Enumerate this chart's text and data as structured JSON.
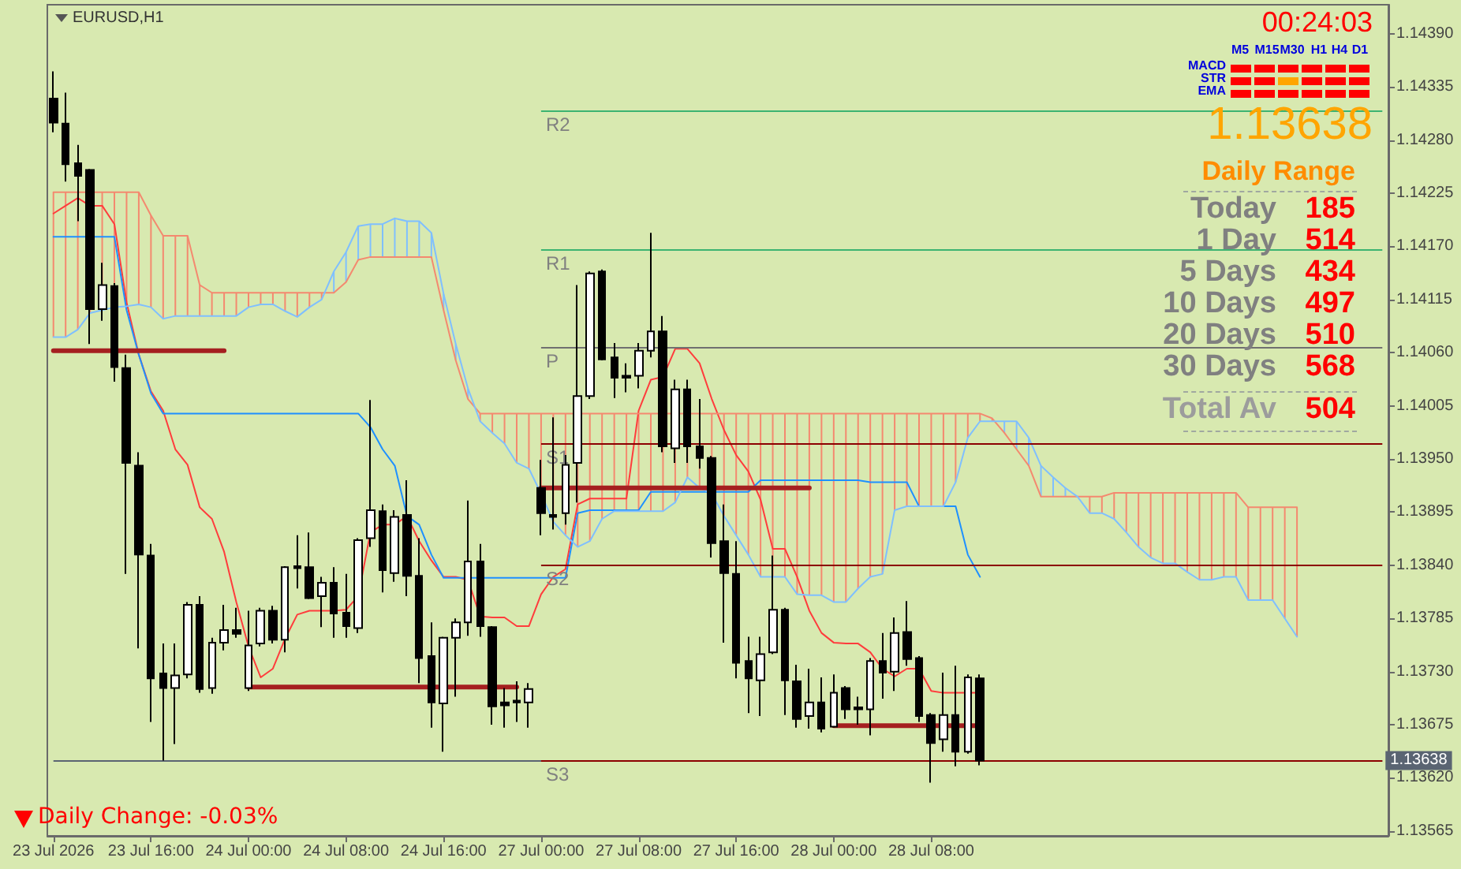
{
  "chart_data": {
    "type": "candlestick",
    "title": "EURUSD,H1",
    "color": "#000000",
    "categories": [
      "23 Jul 2026",
      null,
      null,
      null,
      null,
      null,
      null,
      null,
      "23 Jul 16:00",
      null,
      null,
      null,
      null,
      null,
      null,
      null,
      "24 Jul 00:00",
      null,
      null,
      null,
      null,
      null,
      null,
      null,
      "24 Jul 08:00",
      null,
      null,
      null,
      null,
      null,
      null,
      null,
      "24 Jul 16:00",
      null,
      null,
      null,
      null,
      null,
      null,
      null,
      "27 Jul 00:00",
      null,
      null,
      null,
      null,
      null,
      null,
      null,
      "27 Jul 08:00",
      null,
      null,
      null,
      null,
      null,
      null,
      null,
      "27 Jul 16:00",
      null,
      null,
      null,
      null,
      null,
      null,
      null,
      "28 Jul 00:00",
      null,
      null,
      null,
      null,
      null,
      null,
      null,
      "28 Jul 08:00",
      null,
      null,
      null,
      null,
      null,
      null,
      null,
      null,
      null,
      null,
      null,
      null,
      null,
      null,
      null,
      null,
      null,
      null,
      null,
      null,
      null,
      null,
      null,
      null,
      null,
      null,
      null,
      null,
      null,
      null,
      null,
      null,
      null,
      null,
      null,
      null,
      null
    ],
    "ohlc": [
      [
        1.14323,
        1.14351,
        1.14288,
        1.14298
      ],
      [
        1.14297,
        1.14329,
        1.14237,
        1.14255
      ],
      [
        1.14256,
        1.14275,
        1.14196,
        1.14243
      ],
      [
        1.14249,
        1.1425,
        1.14069,
        1.14105
      ],
      [
        1.14105,
        1.14153,
        1.14093,
        1.1413
      ],
      [
        1.14129,
        1.14132,
        1.1403,
        1.14045
      ],
      [
        1.14044,
        1.14058,
        1.13831,
        1.13946
      ],
      [
        1.13943,
        1.13957,
        1.13754,
        1.13851
      ],
      [
        1.1385,
        1.13862,
        1.13678,
        1.13723
      ],
      [
        1.13728,
        1.13759,
        1.13638,
        1.13713
      ],
      [
        1.13713,
        1.13759,
        1.13655,
        1.13726
      ],
      [
        1.13727,
        1.13802,
        1.13723,
        1.13799
      ],
      [
        1.13799,
        1.13808,
        1.13708,
        1.13712
      ],
      [
        1.13713,
        1.13765,
        1.13707,
        1.1376
      ],
      [
        1.1376,
        1.13799,
        1.13752,
        1.13773
      ],
      [
        1.13773,
        1.13796,
        1.13765,
        1.13769
      ],
      [
        1.13713,
        1.13793,
        1.1371,
        1.13757
      ],
      [
        1.13759,
        1.13796,
        1.13756,
        1.13793
      ],
      [
        1.13793,
        1.13798,
        1.13759,
        1.13763
      ],
      [
        1.13763,
        1.13839,
        1.1375,
        1.13838
      ],
      [
        1.13839,
        1.13871,
        1.13816,
        1.13837
      ],
      [
        1.13838,
        1.13874,
        1.13805,
        1.13806
      ],
      [
        1.13808,
        1.13828,
        1.13776,
        1.13822
      ],
      [
        1.13822,
        1.13838,
        1.13765,
        1.1379
      ],
      [
        1.13791,
        1.13831,
        1.13765,
        1.13777
      ],
      [
        1.13775,
        1.13868,
        1.1377,
        1.13866
      ],
      [
        1.13868,
        1.14011,
        1.13859,
        1.13897
      ],
      [
        1.13896,
        1.13903,
        1.13812,
        1.13835
      ],
      [
        1.13832,
        1.13897,
        1.13823,
        1.1389
      ],
      [
        1.13892,
        1.13928,
        1.13808,
        1.13829
      ],
      [
        1.13829,
        1.13868,
        1.13718,
        1.13744
      ],
      [
        1.13746,
        1.13781,
        1.13672,
        1.13698
      ],
      [
        1.13697,
        1.13766,
        1.13647,
        1.13765
      ],
      [
        1.13765,
        1.13785,
        1.13704,
        1.13781
      ],
      [
        1.13781,
        1.13907,
        1.13767,
        1.13844
      ],
      [
        1.13844,
        1.13862,
        1.13766,
        1.13777
      ],
      [
        1.13776,
        1.13777,
        1.13675,
        1.13694
      ],
      [
        1.13698,
        1.13713,
        1.13672,
        1.13695
      ],
      [
        1.137,
        1.1372,
        1.13678,
        1.13698
      ],
      [
        1.13698,
        1.13718,
        1.13672,
        1.13712
      ],
      [
        1.1392,
        1.13949,
        1.13871,
        1.13894
      ],
      [
        1.13892,
        1.13993,
        1.13877,
        1.1389
      ],
      [
        1.13894,
        1.13954,
        1.13882,
        1.13944
      ],
      [
        1.13946,
        1.1413,
        1.13905,
        1.14015
      ],
      [
        1.14015,
        1.14144,
        1.14012,
        1.14142
      ],
      [
        1.14144,
        1.14146,
        1.14052,
        1.14053
      ],
      [
        1.14055,
        1.1407,
        1.14013,
        1.14034
      ],
      [
        1.14036,
        1.14049,
        1.14019,
        1.14034
      ],
      [
        1.14036,
        1.1407,
        1.14023,
        1.14062
      ],
      [
        1.14062,
        1.14184,
        1.14055,
        1.14082
      ],
      [
        1.14082,
        1.14098,
        1.13957,
        1.13963
      ],
      [
        1.13961,
        1.14032,
        1.13946,
        1.14022
      ],
      [
        1.14022,
        1.14032,
        1.13946,
        1.13963
      ],
      [
        1.13963,
        1.14012,
        1.1394,
        1.13951
      ],
      [
        1.13951,
        1.13953,
        1.13848,
        1.13863
      ],
      [
        1.13865,
        1.13903,
        1.1376,
        1.13832
      ],
      [
        1.13831,
        1.13865,
        1.13723,
        1.13739
      ],
      [
        1.13741,
        1.13766,
        1.13687,
        1.13723
      ],
      [
        1.13721,
        1.13766,
        1.13684,
        1.13748
      ],
      [
        1.1375,
        1.1385,
        1.13748,
        1.13794
      ],
      [
        1.13794,
        1.13796,
        1.13685,
        1.13721
      ],
      [
        1.1372,
        1.13737,
        1.13672,
        1.13681
      ],
      [
        1.13684,
        1.13733,
        1.13671,
        1.13698
      ],
      [
        1.13698,
        1.13724,
        1.13667,
        1.13671
      ],
      [
        1.13673,
        1.13727,
        1.13672,
        1.13708
      ],
      [
        1.13713,
        1.13715,
        1.13681,
        1.13691
      ],
      [
        1.13693,
        1.13704,
        1.13675,
        1.13691
      ],
      [
        1.13691,
        1.13744,
        1.13664,
        1.13741
      ],
      [
        1.13741,
        1.1377,
        1.13702,
        1.13729
      ],
      [
        1.1373,
        1.13786,
        1.1371,
        1.1377
      ],
      [
        1.13771,
        1.13803,
        1.13736,
        1.13743
      ],
      [
        1.13744,
        1.13746,
        1.13678,
        1.13684
      ],
      [
        1.13685,
        1.13687,
        1.13615,
        1.13656
      ],
      [
        1.1366,
        1.13729,
        1.13647,
        1.13685
      ],
      [
        1.13685,
        1.13736,
        1.13632,
        1.13647
      ],
      [
        1.13647,
        1.13727,
        1.13645,
        1.13724
      ],
      [
        1.13723,
        1.13727,
        1.13633,
        1.13638
      ],
      null,
      null,
      null,
      null,
      null,
      null,
      null,
      null,
      null,
      null,
      null,
      null,
      null,
      null,
      null,
      null,
      null,
      null,
      null,
      null,
      null,
      null,
      null,
      null,
      null,
      null,
      null,
      null,
      null,
      null,
      null,
      null,
      null
    ],
    "series": [
      {
        "type": "line",
        "color": "#ff3c3c",
        "values": [
          1.14204,
          1.14212,
          1.1422,
          1.14212,
          1.14212,
          1.14193,
          1.14112,
          1.14058,
          1.1402,
          1.14,
          1.1396,
          1.13944,
          1.139,
          1.13888,
          1.13854,
          1.13802,
          1.13756,
          1.13724,
          1.13733,
          1.13764,
          1.13789,
          1.13793,
          1.13793,
          1.13793,
          1.13794,
          1.13808,
          1.13874,
          1.13882,
          1.13882,
          1.13891,
          1.13865,
          1.13845,
          1.13828,
          1.13828,
          1.13825,
          1.13787,
          1.13786,
          1.13786,
          1.13777,
          1.13777,
          1.1381,
          1.13828,
          1.13836,
          1.13903,
          1.13909,
          1.13909,
          1.13909,
          1.13909,
          1.14,
          1.14032,
          1.14035,
          1.14064,
          1.14064,
          1.14049,
          1.14012,
          1.1398,
          1.13954,
          1.13937,
          1.13908,
          1.13857,
          1.13857,
          1.13828,
          1.13793,
          1.1377,
          1.1376,
          1.13759,
          1.13759,
          1.1375,
          1.13733,
          1.13725,
          1.13733,
          1.13733,
          1.1371,
          1.13708,
          1.13708,
          1.13708,
          1.13708,
          null,
          null,
          null,
          null,
          null,
          null,
          null,
          null,
          null,
          null,
          null,
          null,
          null,
          null,
          null,
          null,
          null,
          null,
          null,
          null,
          null,
          null,
          null,
          null,
          null,
          null,
          null,
          null,
          null,
          null,
          null,
          null,
          null
        ]
      },
      {
        "type": "line",
        "color": "#1e90ff",
        "values": [
          1.1418,
          1.1418,
          1.1418,
          1.1418,
          1.1418,
          1.1418,
          1.14104,
          1.14058,
          1.14018,
          1.13997,
          1.13997,
          1.13997,
          1.13997,
          1.13997,
          1.13997,
          1.13997,
          1.13997,
          1.13997,
          1.13997,
          1.13997,
          1.13997,
          1.13997,
          1.13997,
          1.13997,
          1.13997,
          1.13997,
          1.13983,
          1.1396,
          1.13943,
          1.13891,
          1.13882,
          1.13851,
          1.13827,
          1.13827,
          1.13827,
          1.13827,
          1.13827,
          1.13827,
          1.13827,
          1.13827,
          1.13827,
          1.13827,
          1.13827,
          1.13894,
          1.13897,
          1.13897,
          1.13897,
          1.13897,
          1.13897,
          1.13916,
          1.13916,
          1.13916,
          1.13916,
          1.13916,
          1.13916,
          1.13916,
          1.13916,
          1.13916,
          1.13928,
          1.13928,
          1.13928,
          1.13928,
          1.13928,
          1.13928,
          1.13928,
          1.13928,
          1.13928,
          1.13926,
          1.13926,
          1.13926,
          1.13926,
          1.13901,
          1.13901,
          1.13901,
          1.13901,
          1.13851,
          1.13828,
          null,
          null,
          null,
          null,
          null,
          null,
          null,
          null,
          null,
          null,
          null,
          null,
          null,
          null,
          null,
          null,
          null,
          null,
          null,
          null,
          null,
          null,
          null,
          null,
          null,
          null,
          null,
          null,
          null,
          null,
          null,
          null,
          null
        ]
      },
      {
        "type": "line",
        "color": "#f4896f",
        "values": [
          1.14226,
          1.14226,
          1.14226,
          1.14226,
          1.14226,
          1.14226,
          1.14226,
          1.14226,
          1.14202,
          1.14181,
          1.14181,
          1.14181,
          1.1413,
          1.14122,
          1.14122,
          1.14122,
          1.14122,
          1.14122,
          1.14122,
          1.14122,
          1.14122,
          1.14122,
          1.14122,
          1.14122,
          1.14133,
          1.14156,
          1.14159,
          1.14159,
          1.14159,
          1.14159,
          1.14159,
          1.14159,
          1.14104,
          1.14052,
          1.14012,
          1.13997,
          1.13997,
          1.13997,
          1.13997,
          1.13997,
          1.13997,
          1.13997,
          1.13997,
          1.13997,
          1.13997,
          1.13997,
          1.13997,
          1.13997,
          1.13997,
          1.13997,
          1.13997,
          1.13997,
          1.13997,
          1.13997,
          1.13997,
          1.13997,
          1.13997,
          1.13997,
          1.13997,
          1.13997,
          1.13997,
          1.13997,
          1.13997,
          1.13997,
          1.13997,
          1.13997,
          1.13997,
          1.13997,
          1.13997,
          1.13997,
          1.13997,
          1.13997,
          1.13997,
          1.13997,
          1.13997,
          1.13997,
          1.13997,
          1.13992,
          1.13977,
          1.1396,
          1.13943,
          1.13911,
          1.13911,
          1.13911,
          1.13911,
          1.13911,
          1.13911,
          1.13915,
          1.13915,
          1.13915,
          1.13915,
          1.13915,
          1.13915,
          1.13915,
          1.13915,
          1.13915,
          1.13915,
          1.13915,
          1.139,
          1.139,
          1.139,
          1.139,
          1.139,
          null,
          null,
          null,
          null,
          null,
          null,
          null
        ]
      },
      {
        "type": "line",
        "color": "#7fbfff",
        "values": [
          1.14076,
          1.14076,
          1.14084,
          1.14101,
          1.14104,
          1.14107,
          1.14108,
          1.1411,
          1.14107,
          1.14095,
          1.14098,
          1.14098,
          1.14098,
          1.14098,
          1.14098,
          1.14098,
          1.14107,
          1.1411,
          1.1411,
          1.14103,
          1.14097,
          1.14107,
          1.14115,
          1.14144,
          1.14164,
          1.14191,
          1.14193,
          1.14193,
          1.14199,
          1.14196,
          1.14196,
          1.14184,
          1.14121,
          1.14069,
          1.14023,
          1.13989,
          1.13977,
          1.13966,
          1.13946,
          1.1394,
          1.13914,
          1.13885,
          1.13871,
          1.13859,
          1.13865,
          1.13888,
          1.13896,
          1.13896,
          1.13896,
          1.13896,
          1.13896,
          1.13905,
          1.13931,
          1.1392,
          1.13914,
          1.13891,
          1.13871,
          1.13851,
          1.13828,
          1.13828,
          1.13828,
          1.1381,
          1.13809,
          1.13809,
          1.13802,
          1.13802,
          1.13816,
          1.13828,
          1.13831,
          1.13897,
          1.13901,
          1.13901,
          1.13901,
          1.13901,
          1.13926,
          1.13972,
          1.13989,
          1.13989,
          1.13989,
          1.13989,
          1.13972,
          1.13943,
          1.13931,
          1.1392,
          1.13911,
          1.13894,
          1.13894,
          1.13888,
          1.13874,
          1.13859,
          1.13848,
          1.13842,
          1.13842,
          1.13833,
          1.13825,
          1.13825,
          1.13828,
          1.13828,
          1.13804,
          1.13804,
          1.13804,
          1.13785,
          1.13766,
          null,
          null,
          null,
          null,
          null,
          null,
          null
        ]
      },
      {
        "type": "line",
        "color": "#a52020",
        "values": [
          1.14062,
          1.14062,
          1.14062,
          1.14062,
          1.14062,
          1.14062,
          1.14062,
          1.14062,
          1.14062,
          1.14062,
          1.14062,
          1.14062,
          1.14062,
          1.14062,
          1.14062,
          null,
          1.13714,
          1.13714,
          1.13714,
          1.13714,
          1.13714,
          1.13714,
          1.13714,
          1.13714,
          1.13714,
          1.13714,
          1.13714,
          1.13714,
          1.13714,
          1.13714,
          1.13714,
          1.13714,
          1.13714,
          1.13714,
          1.13714,
          1.13714,
          1.13714,
          1.13714,
          1.13714,
          null,
          1.1392,
          1.1392,
          1.1392,
          1.1392,
          1.1392,
          1.1392,
          1.1392,
          1.1392,
          1.1392,
          1.1392,
          1.1392,
          1.1392,
          1.1392,
          1.1392,
          1.1392,
          1.1392,
          1.1392,
          1.1392,
          1.1392,
          1.1392,
          1.1392,
          1.1392,
          1.1392,
          null,
          1.13674,
          1.13674,
          1.13674,
          1.13674,
          1.13674,
          1.13674,
          1.13674,
          1.13674,
          1.13674,
          1.13674,
          1.13674,
          1.13674,
          1.13674,
          null,
          null,
          null,
          null,
          null,
          null,
          null,
          null,
          null,
          null,
          null,
          null,
          null,
          null,
          null,
          null,
          null,
          null,
          null,
          null,
          null,
          null,
          null,
          null,
          null,
          null,
          null,
          null,
          null,
          null,
          null,
          null,
          null
        ]
      }
    ],
    "ref_lines": [
      {
        "axis": "y",
        "value": 1.14311,
        "label": "R2",
        "color": "#3cb371"
      },
      {
        "axis": "y",
        "value": 1.14167,
        "label": "R1",
        "color": "#3cb371"
      },
      {
        "axis": "y",
        "value": 1.14066,
        "label": "P",
        "color": "#707070"
      },
      {
        "axis": "y",
        "value": 1.13966,
        "label": "S1",
        "color": "#8b0000"
      },
      {
        "axis": "y",
        "value": 1.13841,
        "label": "S2",
        "color": "#8b0000"
      },
      {
        "axis": "y",
        "value": 1.13638,
        "label": "S3",
        "color": "#8b0000"
      },
      {
        "axis": "y",
        "value": 1.13638,
        "label": "1.13638",
        "color": "#5a6472"
      }
    ],
    "ylim": [
      1.1356,
      1.1442
    ],
    "yticks": [
      1.13565,
      {
        "value": 1.1362,
        "label": "1.13620"
      },
      1.13675,
      {
        "value": 1.1373,
        "label": "1.13730"
      },
      1.13785,
      {
        "value": 1.1384,
        "label": "1.13840"
      },
      1.13895,
      {
        "value": 1.1395,
        "label": "1.13950"
      },
      1.14005,
      {
        "value": 1.1406,
        "label": "1.14060"
      },
      1.14115,
      {
        "value": 1.1417,
        "label": "1.14170"
      },
      1.14225,
      {
        "value": 1.1428,
        "label": "1.14280"
      },
      1.14335,
      {
        "value": 1.1439,
        "label": "1.14390"
      }
    ],
    "annotations": [
      "00:24:03",
      "M5",
      "M15",
      "M30",
      "H1",
      "H4",
      "D1",
      "MACD",
      "STR",
      "EMA",
      "1.13638",
      "Daily Range",
      "Today",
      "185",
      "1 Day",
      "514",
      "5 Days",
      "434",
      "10 Days",
      "497",
      "20 Days",
      "510",
      "30 Days",
      "568",
      "Total Av",
      "504",
      "Daily Change: -0.03%"
    ]
  }
}
